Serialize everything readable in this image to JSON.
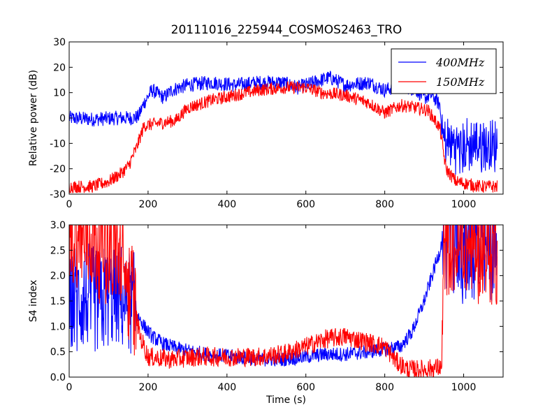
{
  "figure": {
    "title": "20111016_225944_COSMOS2463_TRO"
  },
  "chart_data": [
    {
      "type": "line",
      "ylabel": "Relative power (dB)",
      "xlabel": "",
      "xlim": [
        0,
        1100
      ],
      "ylim": [
        -30,
        30
      ],
      "xticks": [
        0,
        200,
        400,
        600,
        800,
        1000
      ],
      "yticks": [
        -30,
        -20,
        -10,
        0,
        10,
        20,
        30
      ],
      "legend": "top-right",
      "series": [
        {
          "name": "400MHz",
          "color": "#0000ff",
          "noise": 1.8,
          "points": [
            [
              0,
              0
            ],
            [
              60,
              -0.5
            ],
            [
              120,
              0
            ],
            [
              160,
              0
            ],
            [
              175,
              0.5
            ],
            [
              190,
              6
            ],
            [
              210,
              11
            ],
            [
              240,
              8
            ],
            [
              260,
              11
            ],
            [
              300,
              13
            ],
            [
              360,
              14
            ],
            [
              420,
              13
            ],
            [
              480,
              14
            ],
            [
              540,
              14
            ],
            [
              580,
              12
            ],
            [
              640,
              15
            ],
            [
              660,
              16
            ],
            [
              700,
              13
            ],
            [
              760,
              14
            ],
            [
              800,
              11
            ],
            [
              840,
              13
            ],
            [
              880,
              11
            ],
            [
              900,
              8
            ],
            [
              920,
              9
            ],
            [
              940,
              5
            ],
            [
              945,
              -6
            ],
            [
              950,
              -9
            ],
            [
              1000,
              -12
            ],
            [
              1040,
              -10
            ],
            [
              1085,
              -12
            ]
          ]
        },
        {
          "name": "150MHz",
          "color": "#ff0000",
          "noise": 1.6,
          "points": [
            [
              0,
              -27
            ],
            [
              60,
              -27
            ],
            [
              100,
              -25
            ],
            [
              130,
              -22
            ],
            [
              150,
              -19
            ],
            [
              170,
              -12
            ],
            [
              190,
              -3
            ],
            [
              230,
              -2
            ],
            [
              270,
              -1
            ],
            [
              300,
              4
            ],
            [
              360,
              7
            ],
            [
              420,
              9
            ],
            [
              480,
              11
            ],
            [
              540,
              12
            ],
            [
              600,
              12
            ],
            [
              640,
              10
            ],
            [
              700,
              9
            ],
            [
              760,
              6
            ],
            [
              800,
              2
            ],
            [
              840,
              5
            ],
            [
              880,
              4
            ],
            [
              910,
              3
            ],
            [
              940,
              -4
            ],
            [
              955,
              -20
            ],
            [
              980,
              -25
            ],
            [
              1040,
              -27
            ],
            [
              1085,
              -27
            ]
          ]
        }
      ]
    },
    {
      "type": "line",
      "ylabel": "S4 index",
      "xlabel": "Time (s)",
      "xlim": [
        0,
        1100
      ],
      "ylim": [
        0,
        3
      ],
      "xticks": [
        0,
        200,
        400,
        600,
        800,
        1000
      ],
      "yticks": [
        0.0,
        0.5,
        1.0,
        1.5,
        2.0,
        2.5,
        3.0
      ],
      "series": [
        {
          "name": "400MHz",
          "color": "#0000ff",
          "noise": 0.09,
          "points": [
            [
              0,
              1.5
            ],
            [
              60,
              1.5
            ],
            [
              120,
              1.6
            ],
            [
              160,
              1.4
            ],
            [
              190,
              1.0
            ],
            [
              210,
              0.8
            ],
            [
              240,
              0.65
            ],
            [
              280,
              0.55
            ],
            [
              350,
              0.45
            ],
            [
              420,
              0.4
            ],
            [
              480,
              0.35
            ],
            [
              540,
              0.35
            ],
            [
              600,
              0.4
            ],
            [
              650,
              0.45
            ],
            [
              700,
              0.45
            ],
            [
              760,
              0.5
            ],
            [
              800,
              0.55
            ],
            [
              840,
              0.6
            ],
            [
              870,
              0.9
            ],
            [
              900,
              1.5
            ],
            [
              920,
              2.0
            ],
            [
              940,
              2.5
            ],
            [
              950,
              2.9
            ],
            [
              1000,
              2.5
            ],
            [
              1085,
              2.5
            ]
          ]
        },
        {
          "name": "150MHz",
          "color": "#ff0000",
          "noise": 0.12,
          "points": [
            [
              0,
              2.8
            ],
            [
              60,
              2.7
            ],
            [
              120,
              2.5
            ],
            [
              160,
              1.6
            ],
            [
              180,
              0.8
            ],
            [
              200,
              0.4
            ],
            [
              260,
              0.35
            ],
            [
              320,
              0.4
            ],
            [
              400,
              0.4
            ],
            [
              480,
              0.4
            ],
            [
              540,
              0.45
            ],
            [
              600,
              0.6
            ],
            [
              650,
              0.75
            ],
            [
              700,
              0.8
            ],
            [
              750,
              0.7
            ],
            [
              800,
              0.6
            ],
            [
              830,
              0.3
            ],
            [
              860,
              0.15
            ],
            [
              900,
              0.15
            ],
            [
              945,
              0.2
            ],
            [
              950,
              2.5
            ],
            [
              1000,
              2.6
            ],
            [
              1085,
              2.5
            ]
          ]
        }
      ]
    }
  ]
}
